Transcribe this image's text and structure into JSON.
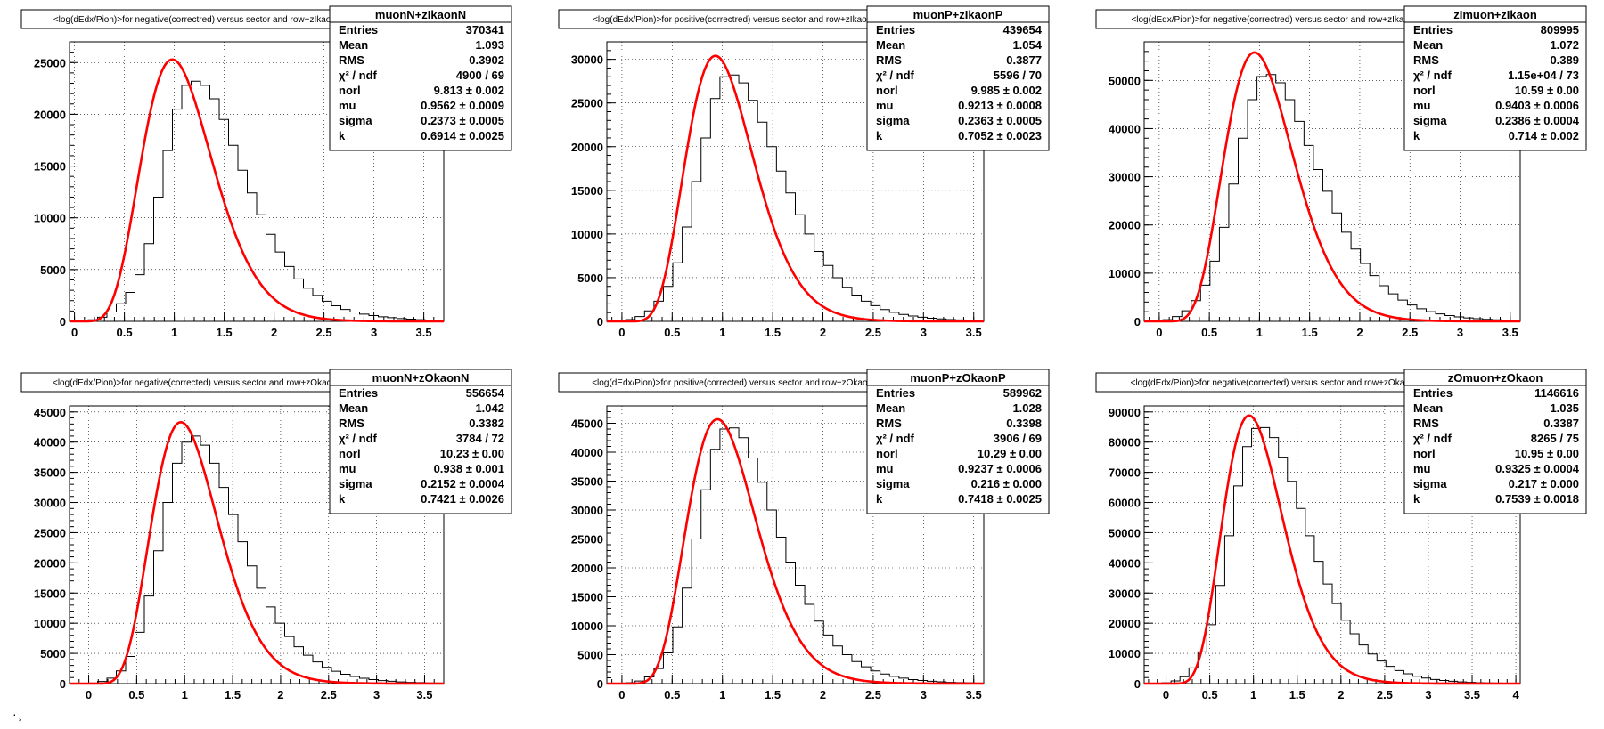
{
  "page_mark": "· ̧",
  "chart_data": [
    {
      "type": "histogram_with_fit",
      "title": "<log(dEdx/Pion)>for negative(correctred) versus sector and row+zIkaonN",
      "histogram_name": "muonN+zIkaonN",
      "xlim": [
        -0.05,
        3.7
      ],
      "ylim": [
        0,
        27000
      ],
      "xticks": [
        0,
        0.5,
        1,
        1.5,
        2,
        2.5,
        3,
        3.5
      ],
      "xtick_labels": [
        "0",
        "0.5",
        "1",
        "1.5",
        "2",
        "2.5",
        "3",
        "3.5"
      ],
      "yticks": [
        0,
        5000,
        10000,
        15000,
        20000,
        25000
      ],
      "ytick_labels": [
        "0",
        "5000",
        "10000",
        "15000",
        "20000",
        "25000"
      ],
      "grid": true,
      "hist_color": "#000000",
      "fit_color": "#ff0000",
      "stats": [
        {
          "label": "Entries",
          "value": "370341"
        },
        {
          "label": "Mean",
          "value": "1.093"
        },
        {
          "label": "RMS",
          "value": "0.3902"
        },
        {
          "label": "χ² / ndf",
          "value": "4900 / 69"
        },
        {
          "label": "norl",
          "value": "9.813 ± 0.002"
        },
        {
          "label": "mu",
          "value": "0.9562 ± 0.0009"
        },
        {
          "label": "sigma",
          "value": "0.2373 ± 0.0005"
        },
        {
          "label": "k",
          "value": "0.6914 ± 0.0025"
        }
      ],
      "fit_peak": {
        "x": 0.98,
        "y": 25300
      },
      "fit_left": [
        [
          0,
          0
        ],
        [
          0.3,
          1600
        ],
        [
          0.5,
          5500
        ],
        [
          0.7,
          14000
        ],
        [
          0.85,
          21500
        ],
        [
          0.98,
          25300
        ],
        [
          1.1,
          22500
        ],
        [
          1.25,
          15000
        ],
        [
          1.5,
          7500
        ],
        [
          1.7,
          4000
        ],
        [
          2.0,
          1800
        ],
        [
          2.5,
          600
        ],
        [
          3.0,
          150
        ],
        [
          3.7,
          20
        ]
      ],
      "hist_y": [
        0,
        40,
        150,
        400,
        900,
        1700,
        2800,
        4500,
        7500,
        12000,
        16500,
        20500,
        22800,
        23200,
        22800,
        21500,
        19500,
        17000,
        14600,
        12400,
        10300,
        8400,
        6700,
        5300,
        4100,
        3200,
        2500,
        1950,
        1500,
        1150,
        900,
        700,
        560,
        440,
        350,
        270,
        210,
        160,
        120,
        95
      ]
    },
    {
      "type": "histogram_with_fit",
      "title": "<log(dEdx/Pion)>for positive(correctred) versus sector and row+zIkaonP",
      "histogram_name": "muonP+zIkaonP",
      "xlim": [
        -0.15,
        3.6
      ],
      "ylim": [
        0,
        32000
      ],
      "xticks": [
        0,
        0.5,
        1,
        1.5,
        2,
        2.5,
        3,
        3.5
      ],
      "xtick_labels": [
        "0",
        "0.5",
        "1",
        "1.5",
        "2",
        "2.5",
        "3",
        "3.5"
      ],
      "yticks": [
        0,
        5000,
        10000,
        15000,
        20000,
        25000,
        30000
      ],
      "ytick_labels": [
        "0",
        "5000",
        "10000",
        "15000",
        "20000",
        "25000",
        "30000"
      ],
      "grid": true,
      "hist_color": "#000000",
      "fit_color": "#ff0000",
      "stats": [
        {
          "label": "Entries",
          "value": "439654"
        },
        {
          "label": "Mean",
          "value": "1.054"
        },
        {
          "label": "RMS",
          "value": "0.3877"
        },
        {
          "label": "χ² / ndf",
          "value": "5596 / 70"
        },
        {
          "label": "norl",
          "value": "9.985 ± 0.002"
        },
        {
          "label": "mu",
          "value": "0.9213 ± 0.0008"
        },
        {
          "label": "sigma",
          "value": "0.2363 ± 0.0005"
        },
        {
          "label": "k",
          "value": "0.7052 ± 0.0023"
        }
      ],
      "fit_peak": {
        "x": 0.93,
        "y": 30400
      },
      "hist_y": [
        0,
        50,
        200,
        550,
        1200,
        2300,
        4000,
        6700,
        10800,
        16000,
        21000,
        25500,
        28000,
        28200,
        27300,
        25300,
        22800,
        20000,
        17200,
        14700,
        12200,
        10000,
        8000,
        6400,
        5000,
        3900,
        3000,
        2300,
        1800,
        1350,
        1030,
        790,
        610,
        470,
        360,
        280,
        210,
        160,
        120,
        90
      ]
    },
    {
      "type": "histogram_with_fit",
      "title": "<log(dEdx/Pion)>for negative(correctred) versus sector and row+zIkaon",
      "histogram_name": "zImuon+zIkaon",
      "xlim": [
        -0.15,
        3.6
      ],
      "ylim": [
        0,
        58000
      ],
      "xticks": [
        0,
        0.5,
        1,
        1.5,
        2,
        2.5,
        3,
        3.5
      ],
      "xtick_labels": [
        "0",
        "0.5",
        "1",
        "1.5",
        "2",
        "2.5",
        "3",
        "3.5"
      ],
      "yticks": [
        0,
        10000,
        20000,
        30000,
        40000,
        50000
      ],
      "ytick_labels": [
        "0",
        "10000",
        "20000",
        "30000",
        "40000",
        "50000"
      ],
      "grid": true,
      "hist_color": "#000000",
      "fit_color": "#ff0000",
      "stats": [
        {
          "label": "Entries",
          "value": "809995"
        },
        {
          "label": "Mean",
          "value": "1.072"
        },
        {
          "label": "RMS",
          "value": "0.389"
        },
        {
          "label": "χ² / ndf",
          "value": "1.15e+04 / 73"
        },
        {
          "label": "norl",
          "value": "10.59 ± 0.00"
        },
        {
          "label": "mu",
          "value": "0.9403 ± 0.0006"
        },
        {
          "label": "sigma",
          "value": "0.2386 ± 0.0004"
        },
        {
          "label": "k",
          "value": "0.714 ± 0.002"
        }
      ],
      "fit_peak": {
        "x": 0.95,
        "y": 55800
      },
      "hist_y": [
        0,
        80,
        350,
        1000,
        2200,
        4300,
        7500,
        12500,
        19500,
        28500,
        38000,
        46000,
        50800,
        51200,
        49500,
        46000,
        41500,
        36500,
        31500,
        27000,
        22500,
        18500,
        15000,
        12000,
        9500,
        7400,
        5700,
        4400,
        3400,
        2600,
        2000,
        1550,
        1200,
        920,
        710,
        550,
        420,
        320,
        250,
        190
      ]
    },
    {
      "type": "histogram_with_fit",
      "title": "<log(dEdx/Pion)>for negative(corrected) versus sector and row+zOkaonN",
      "histogram_name": "muonN+zOkaonN",
      "xlim": [
        -0.2,
        3.7
      ],
      "ylim": [
        0,
        46000
      ],
      "xticks": [
        0,
        0.5,
        1,
        1.5,
        2,
        2.5,
        3,
        3.5
      ],
      "xtick_labels": [
        "0",
        "0.5",
        "1",
        "1.5",
        "2",
        "2.5",
        "3",
        "3.5"
      ],
      "yticks": [
        0,
        5000,
        10000,
        15000,
        20000,
        25000,
        30000,
        35000,
        40000,
        45000
      ],
      "ytick_labels": [
        "0",
        "5000",
        "10000",
        "15000",
        "20000",
        "25000",
        "30000",
        "35000",
        "40000",
        "45000"
      ],
      "grid": true,
      "hist_color": "#000000",
      "fit_color": "#ff0000",
      "stats": [
        {
          "label": "Entries",
          "value": "556654"
        },
        {
          "label": "Mean",
          "value": "1.042"
        },
        {
          "label": "RMS",
          "value": "0.3382"
        },
        {
          "label": "χ² / ndf",
          "value": "3784 / 72"
        },
        {
          "label": "norl",
          "value": "10.23 ± 0.00"
        },
        {
          "label": "mu",
          "value": "0.938 ± 0.001"
        },
        {
          "label": "sigma",
          "value": "0.2152 ± 0.0004"
        },
        {
          "label": "k",
          "value": "0.7421 ± 0.0026"
        }
      ],
      "fit_peak": {
        "x": 0.96,
        "y": 43300
      },
      "hist_y": [
        0,
        20,
        100,
        350,
        900,
        2100,
        4500,
        8500,
        14500,
        22000,
        30000,
        36500,
        40000,
        41000,
        39500,
        36500,
        32500,
        28000,
        23500,
        19500,
        15800,
        12700,
        10000,
        7800,
        6100,
        4700,
        3600,
        2700,
        2050,
        1550,
        1170,
        880,
        660,
        500,
        380,
        280,
        210,
        160,
        120,
        90
      ]
    },
    {
      "type": "histogram_with_fit",
      "title": "<log(dEdx/Pion)>for positive(corrected) versus sector and row+zOkaonP",
      "histogram_name": "muonP+zOkaonP",
      "xlim": [
        -0.15,
        3.6
      ],
      "ylim": [
        0,
        48000
      ],
      "xticks": [
        0,
        0.5,
        1,
        1.5,
        2,
        2.5,
        3,
        3.5
      ],
      "xtick_labels": [
        "0",
        "0.5",
        "1",
        "1.5",
        "2",
        "2.5",
        "3",
        "3.5"
      ],
      "yticks": [
        0,
        5000,
        10000,
        15000,
        20000,
        25000,
        30000,
        35000,
        40000,
        45000
      ],
      "ytick_labels": [
        "0",
        "5000",
        "10000",
        "15000",
        "20000",
        "25000",
        "30000",
        "35000",
        "40000",
        "45000"
      ],
      "grid": true,
      "hist_color": "#000000",
      "fit_color": "#ff0000",
      "stats": [
        {
          "label": "Entries",
          "value": "589962"
        },
        {
          "label": "Mean",
          "value": "1.028"
        },
        {
          "label": "RMS",
          "value": "0.3398"
        },
        {
          "label": "χ² / ndf",
          "value": "3906 / 69"
        },
        {
          "label": "norl",
          "value": "10.29 ± 0.00"
        },
        {
          "label": "mu",
          "value": "0.9237 ± 0.0006"
        },
        {
          "label": "sigma",
          "value": "0.216 ± 0.000"
        },
        {
          "label": "k",
          "value": "0.7418 ± 0.0025"
        }
      ],
      "fit_peak": {
        "x": 0.95,
        "y": 45700
      },
      "hist_y": [
        0,
        30,
        150,
        450,
        1150,
        2600,
        5300,
        9800,
        16500,
        25000,
        33500,
        40500,
        44000,
        44200,
        42500,
        39000,
        34800,
        30000,
        25300,
        21000,
        17000,
        13700,
        10800,
        8400,
        6500,
        5000,
        3800,
        2900,
        2200,
        1650,
        1250,
        940,
        700,
        530,
        400,
        300,
        220,
        170,
        130,
        95
      ]
    },
    {
      "type": "histogram_with_fit",
      "title": "<log(dEdx/Pion)>for negative(corrected) versus sector and row+zOkaon",
      "histogram_name": "zOmuon+zOkaon",
      "xlim": [
        -0.25,
        4.05
      ],
      "ylim": [
        0,
        92000
      ],
      "xticks": [
        0,
        0.5,
        1,
        1.5,
        2,
        2.5,
        3,
        3.5,
        4
      ],
      "xtick_labels": [
        "0",
        "0.5",
        "1",
        "1.5",
        "2",
        "2.5",
        "3",
        "3.5",
        "4"
      ],
      "yticks": [
        0,
        10000,
        20000,
        30000,
        40000,
        50000,
        60000,
        70000,
        80000,
        90000
      ],
      "ytick_labels": [
        "0",
        "10000",
        "20000",
        "30000",
        "40000",
        "50000",
        "60000",
        "70000",
        "80000",
        "90000"
      ],
      "grid": true,
      "hist_color": "#000000",
      "fit_color": "#ff0000",
      "stats": [
        {
          "label": "Entries",
          "value": "1146616"
        },
        {
          "label": "Mean",
          "value": "1.035"
        },
        {
          "label": "RMS",
          "value": "0.3387"
        },
        {
          "label": "χ² / ndf",
          "value": "8265 / 75"
        },
        {
          "label": "norl",
          "value": "10.95 ± 0.00"
        },
        {
          "label": "mu",
          "value": "0.9325 ± 0.0004"
        },
        {
          "label": "sigma",
          "value": "0.217 ± 0.000"
        },
        {
          "label": "k",
          "value": "0.7539 ± 0.0018"
        }
      ],
      "fit_peak": {
        "x": 0.95,
        "y": 88800
      },
      "hist_y": [
        0,
        40,
        250,
        900,
        2300,
        5200,
        10500,
        19500,
        32500,
        49000,
        65500,
        78500,
        84500,
        84800,
        81500,
        75000,
        67000,
        58000,
        49000,
        40500,
        33000,
        26500,
        21000,
        16500,
        12800,
        9800,
        7500,
        5700,
        4300,
        3250,
        2450,
        1850,
        1380,
        1030,
        770,
        570,
        420,
        310,
        230,
        170,
        120,
        90
      ]
    }
  ]
}
